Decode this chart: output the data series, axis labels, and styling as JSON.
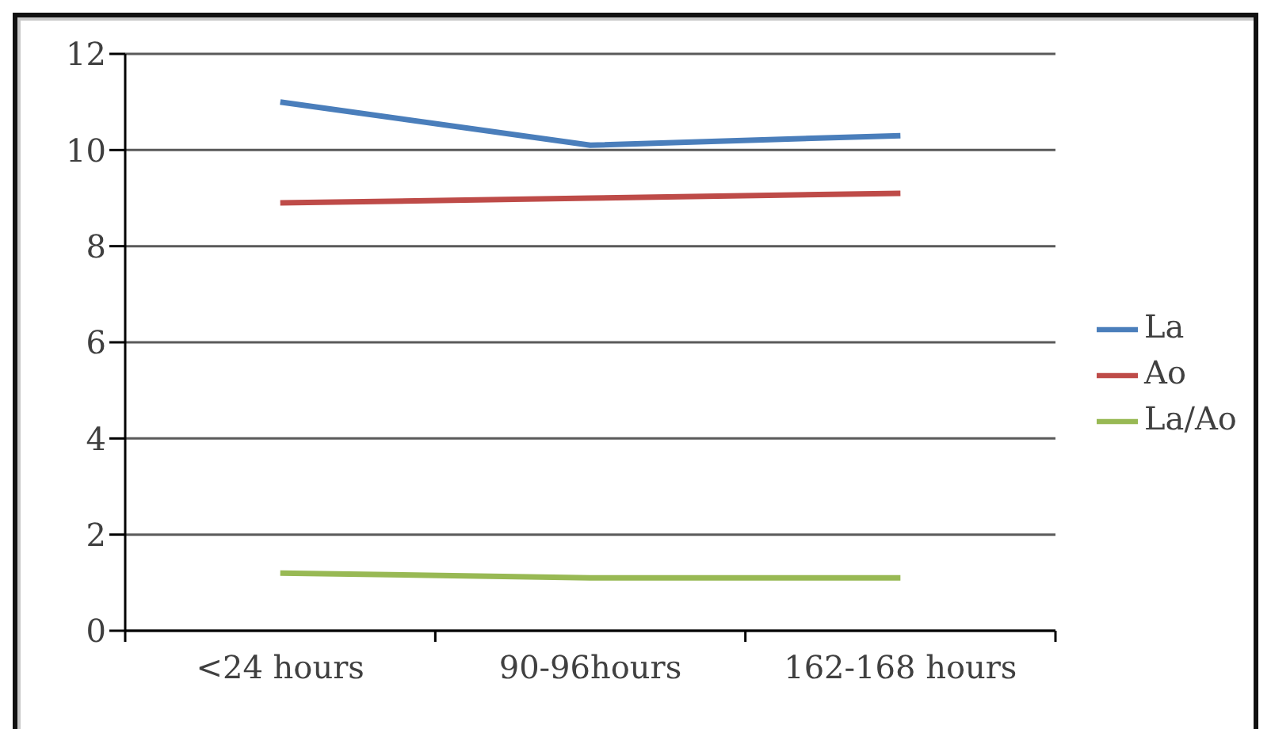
{
  "chart_data": {
    "type": "line",
    "categories": [
      "<24 hours",
      "90-96hours",
      "162-168 hours"
    ],
    "series": [
      {
        "name": "La",
        "color": "#4a7ebb",
        "values": [
          11.0,
          10.1,
          10.3
        ]
      },
      {
        "name": "Ao",
        "color": "#be4b48",
        "values": [
          8.9,
          9.0,
          9.1
        ]
      },
      {
        "name": "La/Ao",
        "color": "#98b954",
        "values": [
          1.2,
          1.1,
          1.1
        ]
      }
    ],
    "ylim": [
      0,
      12
    ],
    "yticks": [
      0,
      2,
      4,
      6,
      8,
      10,
      12
    ],
    "grid": "y",
    "legend": "right",
    "marker": "none",
    "line_style": "solid"
  }
}
